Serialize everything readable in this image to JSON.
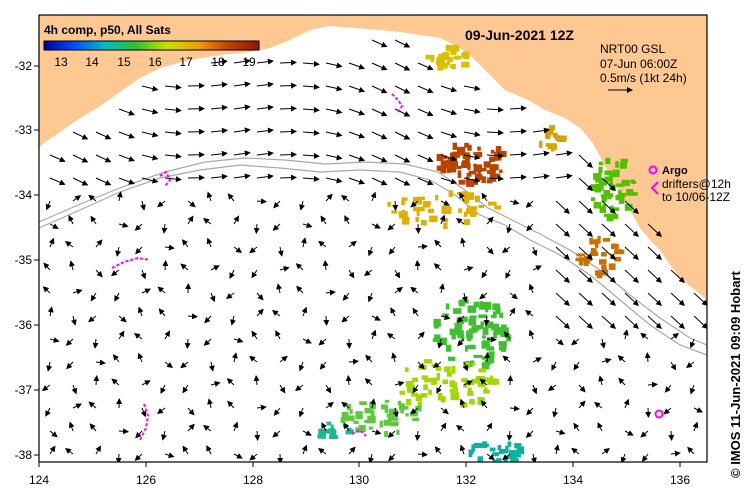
{
  "title": "09-Jun-2021 12Z",
  "colorbar": {
    "title": "4h comp, p50, All Sats",
    "labels": [
      "13",
      "14",
      "15",
      "16",
      "17",
      "18",
      "19"
    ],
    "colors": [
      "#0000a0",
      "#0050ff",
      "#00c0c0",
      "#30c030",
      "#c8e000",
      "#f0a000",
      "#c04000",
      "#8b1a00"
    ]
  },
  "current_info": {
    "line1": "NRT00 GSL",
    "line2": "07-Jun 06:00Z",
    "line3": "0.5m/s (1kt 24h)"
  },
  "legend": {
    "argo_label": "Argo",
    "drifters_label": "drifters@12h",
    "drifters_date": "to 10/06-12Z",
    "argo_color": "#ff00ff"
  },
  "credit": "© IMOS 11-Jun-2021 09:09 Hobart",
  "axes": {
    "x_ticks": [
      "124",
      "126",
      "128",
      "130",
      "132",
      "134",
      "136"
    ],
    "y_ticks": [
      "-32",
      "-33",
      "-34",
      "-35",
      "-36",
      "-37",
      "-38"
    ]
  },
  "colors": {
    "land": "#fdc891",
    "ocean": "#ffffff",
    "frame": "#000000"
  }
}
